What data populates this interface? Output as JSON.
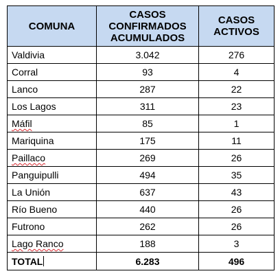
{
  "table": {
    "headers": {
      "comuna": "COMUNA",
      "confirmados": [
        "CASOS",
        "CONFIRMADOS",
        "ACUMULADOS"
      ],
      "activos": [
        "CASOS",
        "ACTIVOS"
      ]
    },
    "rows": [
      {
        "comuna": "Valdivia",
        "confirmados": "3.042",
        "activos": "276"
      },
      {
        "comuna": "Corral",
        "confirmados": "93",
        "activos": "4"
      },
      {
        "comuna": "Lanco",
        "confirmados": "287",
        "activos": "22"
      },
      {
        "comuna": "Los Lagos",
        "confirmados": "311",
        "activos": "23"
      },
      {
        "comuna": "Máfil",
        "confirmados": "85",
        "activos": "1"
      },
      {
        "comuna": "Mariquina",
        "confirmados": "175",
        "activos": "11"
      },
      {
        "comuna": "Paillaco",
        "confirmados": "269",
        "activos": "26"
      },
      {
        "comuna": "Panguipulli",
        "confirmados": "494",
        "activos": "35"
      },
      {
        "comuna": "La Unión",
        "confirmados": "637",
        "activos": "43"
      },
      {
        "comuna": "Río Bueno",
        "confirmados": "440",
        "activos": "26"
      },
      {
        "comuna": "Futrono",
        "confirmados": "262",
        "activos": "26"
      },
      {
        "comuna": "Lago Ranco",
        "confirmados": "188",
        "activos": "3"
      }
    ],
    "total": {
      "label": "TOTAL",
      "confirmados": "6.283",
      "activos": "496"
    }
  },
  "colors": {
    "header_background": "#c6d9f1",
    "border": "#000000",
    "spellcheck_underline": "#d9272e"
  }
}
